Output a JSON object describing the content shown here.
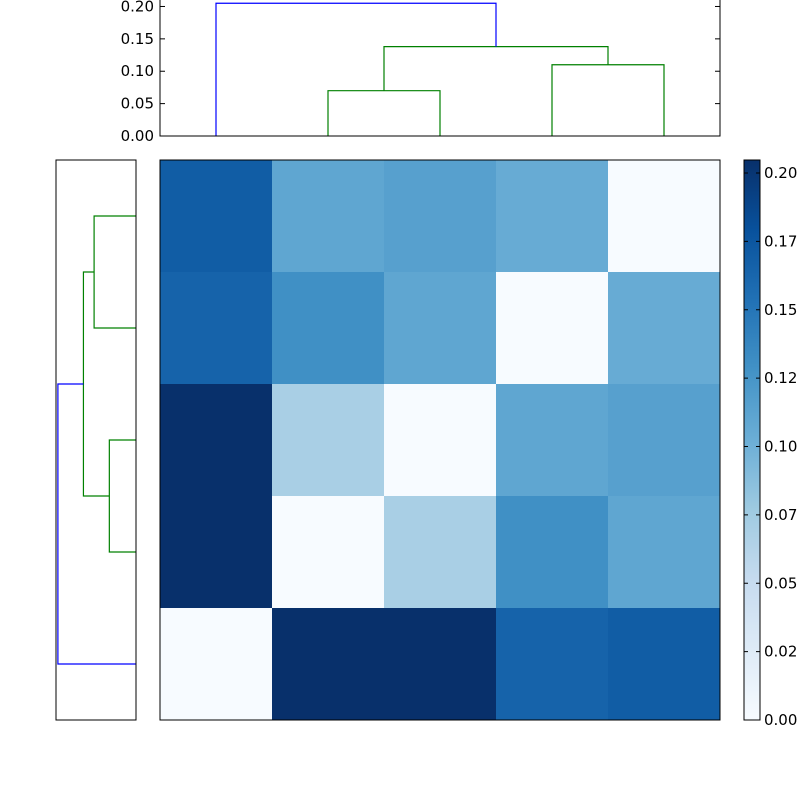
{
  "chart_data": [
    {
      "type": "dendrogram",
      "orientation": "top",
      "ylim": [
        0,
        0.21
      ],
      "yticks": [
        "0.00",
        "0.05",
        "0.10",
        "0.15",
        "0.20"
      ],
      "leaf_count": 5,
      "links": [
        {
          "left": 1,
          "right": 2,
          "height": 0.07,
          "color": "#008000"
        },
        {
          "left": 3,
          "right": 4,
          "height": 0.11,
          "color": "#008000"
        },
        {
          "left": 1.5,
          "right": 3.5,
          "height": 0.138,
          "color": "#008000"
        },
        {
          "left": 0,
          "right": 2.5,
          "height": 0.205,
          "color": "#0000ff"
        }
      ]
    },
    {
      "type": "dendrogram",
      "orientation": "left",
      "leaf_count": 5,
      "height_max": 0.21,
      "links": [
        {
          "top": 0,
          "bottom": 1,
          "height": 0.11,
          "color": "#008000"
        },
        {
          "top": 2,
          "bottom": 3,
          "height": 0.07,
          "color": "#008000"
        },
        {
          "top": 0.5,
          "bottom": 2.5,
          "height": 0.138,
          "color": "#008000"
        },
        {
          "top": 1.5,
          "bottom": 4,
          "height": 0.205,
          "color": "#0000ff"
        }
      ]
    },
    {
      "type": "heatmap",
      "rows": 5,
      "cols": 5,
      "values": [
        [
          0.17,
          0.11,
          0.115,
          0.105,
          0.0
        ],
        [
          0.165,
          0.13,
          0.11,
          0.0,
          0.105
        ],
        [
          0.205,
          0.07,
          0.0,
          0.11,
          0.115
        ],
        [
          0.205,
          0.0,
          0.07,
          0.13,
          0.11
        ],
        [
          0.0,
          0.205,
          0.205,
          0.165,
          0.17
        ]
      ],
      "colormap": "Blues",
      "vmin": 0.0,
      "vmax": 0.205,
      "colorbar_ticks": [
        "0.00",
        "0.02",
        "0.05",
        "0.07",
        "0.10",
        "0.12",
        "0.15",
        "0.17",
        "0.20"
      ]
    }
  ]
}
